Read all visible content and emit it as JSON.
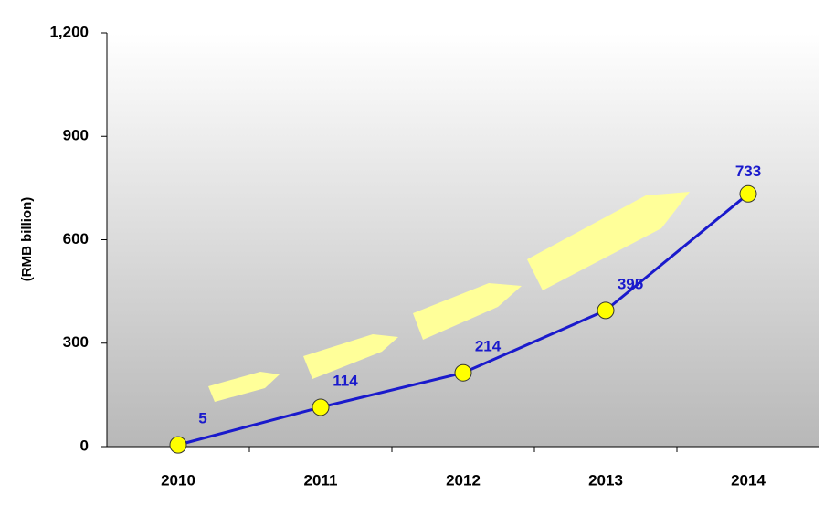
{
  "chart_data": {
    "type": "line",
    "y_label": "(RMB billion)",
    "categories": [
      "2010",
      "2011",
      "2012",
      "2013",
      "2014"
    ],
    "values": [
      5,
      114,
      214,
      395,
      733
    ],
    "color": "#1a1acc",
    "marker_color": "#ffff00",
    "ylim": [
      0,
      1200
    ],
    "yticks": [
      0,
      300,
      600,
      900,
      {
        "value": 1200,
        "label": "1,200"
      }
    ]
  }
}
